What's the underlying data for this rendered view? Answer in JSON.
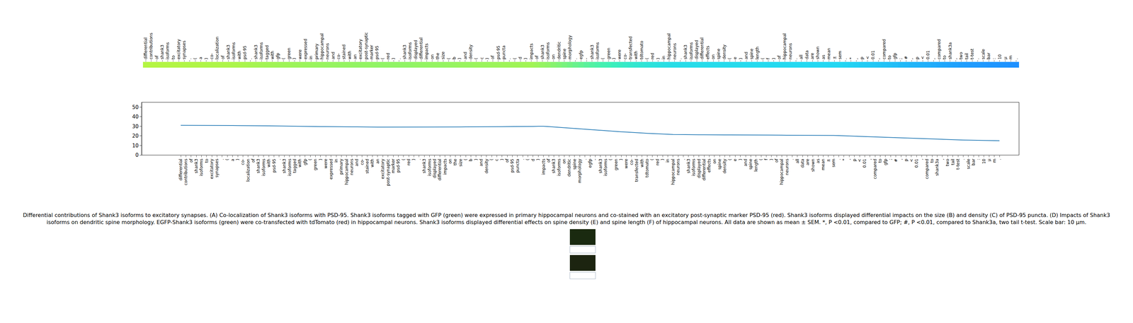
{
  "chart_data": [
    {
      "type": "heatmap",
      "categories": [
        "differential",
        "contributions",
        "of",
        "shank3",
        "isoforms",
        "to",
        "excitatory",
        "synapses",
        ".",
        "(",
        "a",
        ")",
        "co-",
        "localization",
        "of",
        "shank3",
        "isoforms",
        "with",
        "psd-95",
        ".",
        "shank3",
        "isoforms",
        "tagged",
        "with",
        "gfp",
        "(",
        "green",
        ")",
        "were",
        "expressed",
        "in",
        "primary",
        "hippocampal",
        "neurons",
        "and",
        "co-",
        "stained",
        "with",
        "an",
        "excitatory",
        "post-synaptic",
        "marker",
        "psd-95",
        "(",
        "red",
        ")",
        ".",
        "shank3",
        "isoforms",
        "displayed",
        "differential",
        "impacts",
        "on",
        "the",
        "size",
        "(",
        "b",
        ")",
        "and",
        "density",
        "(",
        "c",
        ")",
        "of",
        "psd-95",
        "puncta",
        ".",
        "(",
        "d",
        ")",
        "impacts",
        "of",
        "shank3",
        "isoforms",
        "on",
        "dendritic",
        "spine",
        "morphology",
        ".",
        "egfp",
        "-",
        "shank3",
        "isoforms",
        "(",
        "green",
        ")",
        "were",
        "co-",
        "transfected",
        "with",
        "tdtomato",
        "(",
        "red",
        ")",
        "in",
        "hippocampal",
        "neurons",
        ".",
        "shank3",
        "isoforms",
        "displayed",
        "differential",
        "effects",
        "on",
        "spine",
        "density",
        "(",
        "e",
        ")",
        "and",
        "spine",
        "length",
        "(",
        "f",
        ")",
        "of",
        "hippocampal",
        "neurons",
        ".",
        "all",
        "data",
        "are",
        "shown",
        "as",
        "mean",
        "±",
        "sem",
        ".",
        "*",
        ",",
        "p",
        "<",
        "0.01",
        ",",
        "compared",
        "to",
        "gfp",
        ";",
        "#",
        ",",
        "p",
        "<",
        "0.01",
        ",",
        "compared",
        "to",
        "shank3a",
        ",",
        "two",
        "tail",
        "t-test",
        ".",
        "scale",
        "bar",
        ":",
        "10",
        "μ",
        "m",
        "."
      ],
      "cells": [
        31.0,
        31.0,
        31.0,
        30.9,
        30.9,
        30.9,
        30.9,
        30.8,
        30.8,
        30.8,
        30.8,
        30.7,
        30.7,
        30.7,
        30.6,
        30.6,
        30.5,
        30.5,
        30.4,
        30.3,
        30.2,
        30.1,
        30.0,
        30.0,
        29.9,
        29.8,
        29.8,
        29.7,
        29.7,
        29.6,
        29.6,
        29.5,
        29.5,
        29.4,
        29.4,
        29.3,
        29.3,
        29.3,
        29.2,
        29.2,
        29.2,
        29.2,
        29.1,
        29.1,
        29.1,
        29.1,
        29.1,
        29.1,
        29.1,
        29.2,
        29.2,
        29.2,
        29.3,
        29.3,
        29.3,
        29.4,
        29.4,
        29.5,
        29.5,
        29.5,
        29.6,
        29.6,
        29.6,
        29.7,
        29.7,
        29.8,
        29.8,
        29.9,
        29.9,
        30.0,
        30.0,
        29.7,
        29.3,
        29.0,
        28.6,
        28.2,
        27.8,
        27.4,
        27.0,
        26.6,
        26.2,
        25.8,
        25.4,
        25.0,
        24.7,
        24.3,
        24.0,
        23.6,
        23.3,
        23.0,
        22.7,
        22.4,
        22.2,
        21.9,
        21.7,
        21.5,
        21.4,
        21.3,
        21.3,
        21.2,
        21.2,
        21.2,
        21.1,
        21.1,
        21.1,
        21.0,
        21.0,
        21.0,
        21.0,
        20.9,
        20.9,
        20.9,
        20.9,
        20.8,
        20.8,
        20.8,
        20.8,
        20.7,
        20.7,
        20.7,
        20.7,
        20.6,
        20.6,
        20.6,
        20.5,
        20.5,
        20.5,
        20.3,
        20.1,
        19.9,
        19.7,
        19.5,
        19.3,
        19.1,
        18.9,
        18.7,
        18.5,
        18.3,
        18.1,
        17.9,
        17.7,
        17.5,
        17.3,
        17.1,
        16.9,
        16.7,
        16.5,
        16.3,
        16.1,
        15.9,
        15.8,
        15.7,
        15.6,
        15.5,
        15.4,
        15.3,
        15.2,
        15.1,
        15.0
      ]
    },
    {
      "type": "line",
      "categories": [
        "differential",
        "contributions",
        "of",
        "shank3",
        "isoforms",
        "to",
        "excitatory",
        "synapses",
        ".",
        "(",
        "a",
        ")",
        "co-",
        "localization",
        "of",
        "shank3",
        "isoforms",
        "with",
        "psd-95",
        ".",
        "shank3",
        "isoforms",
        "tagged",
        "with",
        "gfp",
        "(",
        "green",
        ")",
        "were",
        "expressed",
        "in",
        "primary",
        "hippocampal",
        "neurons",
        "and",
        "co-",
        "stained",
        "with",
        "an",
        "excitatory",
        "post-synaptic",
        "marker",
        "psd-95",
        "(",
        "red",
        ")",
        ".",
        "shank3",
        "isoforms",
        "displayed",
        "differential",
        "impacts",
        "on",
        "the",
        "size",
        "(",
        "b",
        ")",
        "and",
        "density",
        "(",
        "c",
        ")",
        "of",
        "psd-95",
        "puncta",
        ".",
        "(",
        "d",
        ")",
        "impacts",
        "of",
        "shank3",
        "isoforms",
        "on",
        "dendritic",
        "spine",
        "morphology",
        ".",
        "egfp",
        "-",
        "shank3",
        "isoforms",
        "(",
        "green",
        ")",
        "were",
        "co-",
        "transfected",
        "with",
        "tdtomato",
        "(",
        "red",
        ")",
        "in",
        "hippocampal",
        "neurons",
        ".",
        "shank3",
        "isoforms",
        "displayed",
        "differential",
        "effects",
        "on",
        "spine",
        "density",
        "(",
        "e",
        ")",
        "and",
        "spine",
        "length",
        "(",
        "f",
        ")",
        "of",
        "hippocampal",
        "neurons",
        ".",
        "all",
        "data",
        "are",
        "shown",
        "as",
        "mean",
        "±",
        "sem",
        ".",
        "*",
        ",",
        "p",
        "<",
        "0.01",
        ",",
        "compared",
        "to",
        "gfp",
        ";",
        "#",
        ",",
        "p",
        "<",
        "0.01",
        ",",
        "compared",
        "to",
        "shank3a",
        ",",
        "two",
        "tail",
        "t-test",
        ".",
        "scale",
        "bar",
        ":",
        "10",
        "μ",
        "m",
        "."
      ],
      "values": [
        31.0,
        31.0,
        31.0,
        30.9,
        30.9,
        30.9,
        30.9,
        30.8,
        30.8,
        30.8,
        30.8,
        30.7,
        30.7,
        30.7,
        30.6,
        30.6,
        30.5,
        30.5,
        30.4,
        30.3,
        30.2,
        30.1,
        30.0,
        30.0,
        29.9,
        29.8,
        29.8,
        29.7,
        29.7,
        29.6,
        29.6,
        29.5,
        29.5,
        29.4,
        29.4,
        29.3,
        29.3,
        29.3,
        29.2,
        29.2,
        29.2,
        29.2,
        29.1,
        29.1,
        29.1,
        29.1,
        29.1,
        29.1,
        29.1,
        29.2,
        29.2,
        29.2,
        29.3,
        29.3,
        29.3,
        29.4,
        29.4,
        29.5,
        29.5,
        29.5,
        29.6,
        29.6,
        29.6,
        29.7,
        29.7,
        29.8,
        29.8,
        29.9,
        29.9,
        30.0,
        30.0,
        29.7,
        29.3,
        29.0,
        28.6,
        28.2,
        27.8,
        27.4,
        27.0,
        26.6,
        26.2,
        25.8,
        25.4,
        25.0,
        24.7,
        24.3,
        24.0,
        23.6,
        23.3,
        23.0,
        22.7,
        22.4,
        22.2,
        21.9,
        21.7,
        21.5,
        21.4,
        21.3,
        21.3,
        21.2,
        21.2,
        21.2,
        21.1,
        21.1,
        21.1,
        21.0,
        21.0,
        21.0,
        21.0,
        20.9,
        20.9,
        20.9,
        20.9,
        20.8,
        20.8,
        20.8,
        20.8,
        20.7,
        20.7,
        20.7,
        20.7,
        20.6,
        20.6,
        20.6,
        20.5,
        20.5,
        20.5,
        20.3,
        20.1,
        19.9,
        19.7,
        19.5,
        19.3,
        19.1,
        18.9,
        18.7,
        18.5,
        18.3,
        18.1,
        17.9,
        17.7,
        17.5,
        17.3,
        17.1,
        16.9,
        16.7,
        16.5,
        16.3,
        16.1,
        15.9,
        15.8,
        15.7,
        15.6,
        15.5,
        15.4,
        15.3,
        15.2,
        15.1,
        15.0
      ],
      "color": "#1f77b4",
      "ylim": [
        0,
        55
      ],
      "yticks": [
        0,
        10,
        20,
        30,
        40,
        50
      ],
      "grid": false,
      "annotations": [
        "Differential contributions of Shank3 isoforms to excitatory synapses. (A) Co-localization of Shank3 isoforms with PSD-95. Shank3 isoforms tagged with GFP (green) were expressed in primary hippocampal neurons and co-stained with an excitatory post-synaptic marker PSD-95 (red). Shank3 isoforms displayed differential impacts on the size (B) and density (C) of PSD-95 puncta. (D) Impacts of Shank3",
        "isoforms on dendritic spine morphology. EGFP-Shank3 isoforms (green) were co-transfected with tdTomato (red) in hippocampal neurons. Shank3 isoforms displayed differential effects on spine density (E) and spine length (F) of hippocampal neurons. All data are shown as mean ± SEM. *, P <0.01, compared to GFP; #, P <0.01, compared to Shank3a, two tail t-test. Scale bar: 10 μm."
      ]
    }
  ]
}
